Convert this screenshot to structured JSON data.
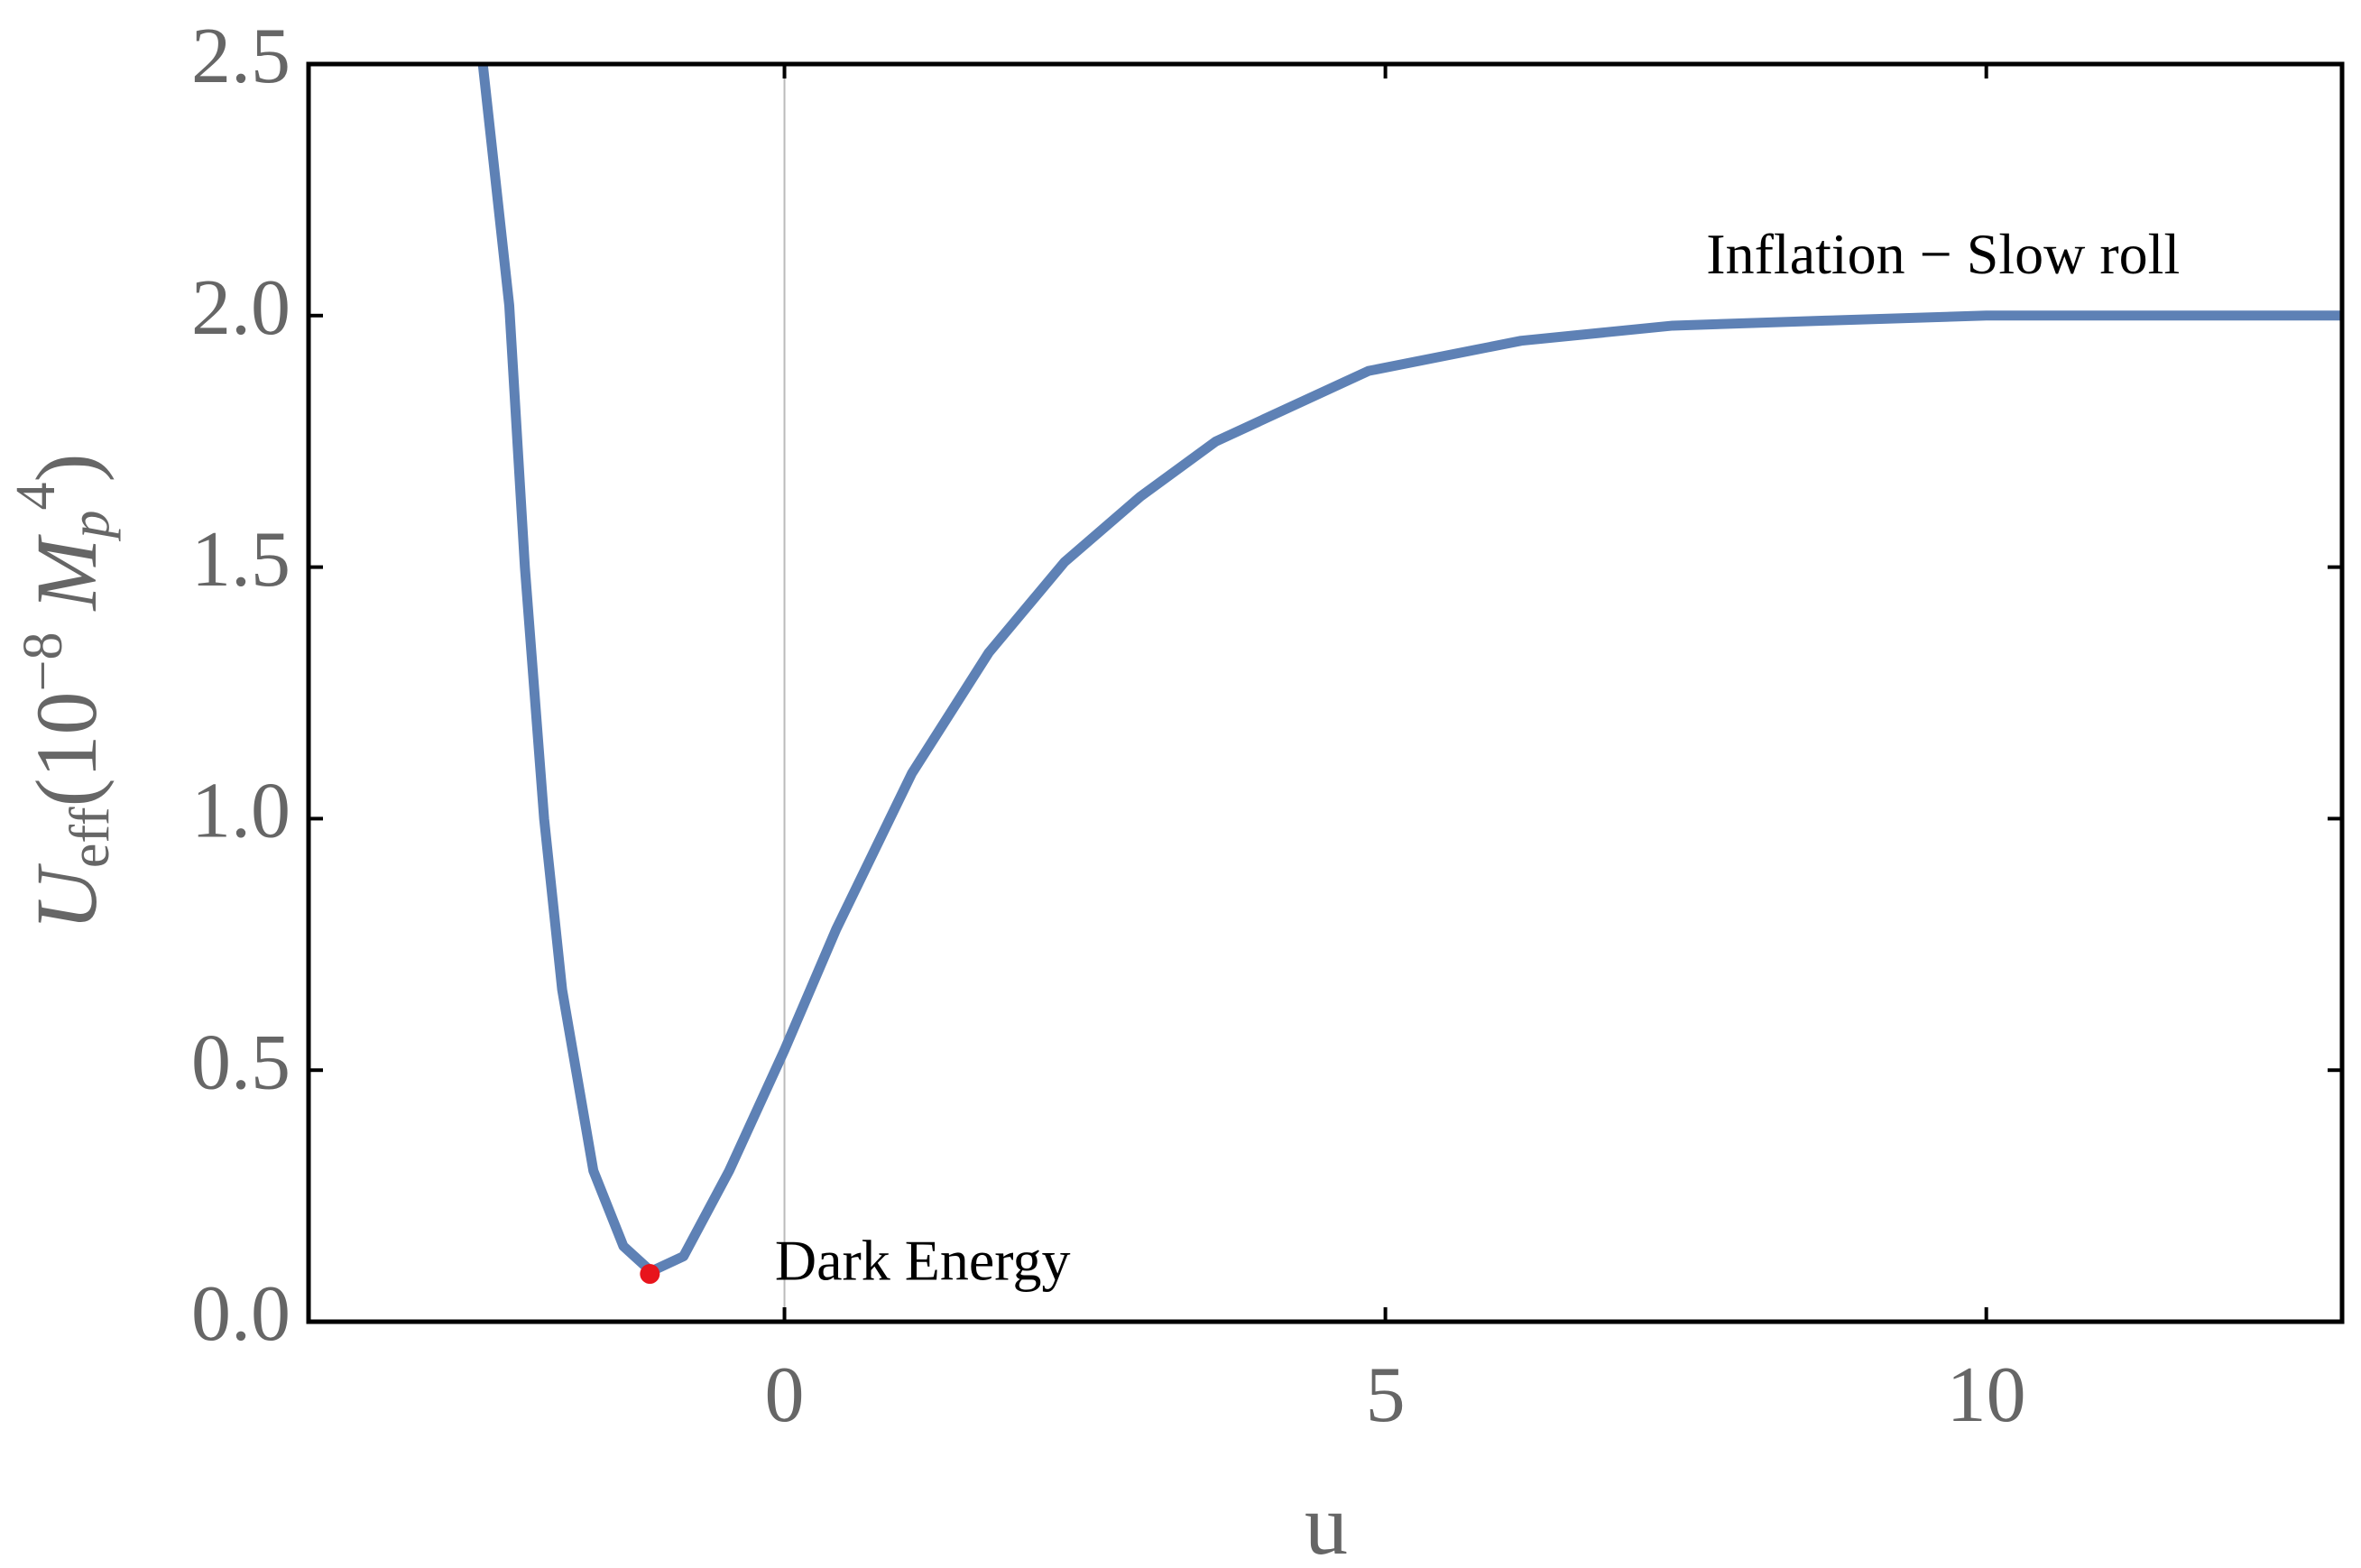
{
  "chart_data": {
    "type": "line",
    "xlabel": "u",
    "ylabel": [
      "U",
      "eff",
      "(10",
      "−8",
      " M",
      "p",
      "4",
      ")"
    ],
    "x": [
      -2.51,
      -2.29,
      -2.16,
      -2.0,
      -1.85,
      -1.59,
      -1.34,
      -1.11,
      -0.84,
      -0.46,
      0,
      0.43,
      1.06,
      1.7,
      2.33,
      2.96,
      3.59,
      4.86,
      6.13,
      7.39,
      8.66,
      10,
      12.96
    ],
    "series": [
      {
        "color": "#5e81b5",
        "values": [
          2.5,
          2.02,
          1.5,
          1.0,
          0.66,
          0.3,
          0.15,
          0.1,
          0.13,
          0.3,
          0.54,
          0.78,
          1.09,
          1.33,
          1.51,
          1.64,
          1.75,
          1.89,
          1.95,
          1.98,
          1.99,
          2.0,
          2.0
        ]
      }
    ],
    "points": [
      {
        "x": -1.12,
        "y": 0.095,
        "color": "#e8141c"
      }
    ],
    "annotations": [
      {
        "text": "Dark Energy",
        "x": -0.08,
        "y": 0.11
      },
      {
        "text": "Inflation − Slow roll",
        "x": 7.67,
        "y": 2.11
      }
    ],
    "xlim": [
      -3.96,
      12.96
    ],
    "ylim": [
      0,
      2.5
    ],
    "xticks": [
      0,
      5,
      10
    ],
    "yticks": [
      {
        "value": 0,
        "label": "0.0"
      },
      {
        "value": 0.5,
        "label": "0.5"
      },
      {
        "value": 1,
        "label": "1.0"
      },
      {
        "value": 1.5,
        "label": "1.5"
      },
      {
        "value": 2,
        "label": "2.0"
      },
      {
        "value": 2.5,
        "label": "2.5"
      }
    ]
  }
}
